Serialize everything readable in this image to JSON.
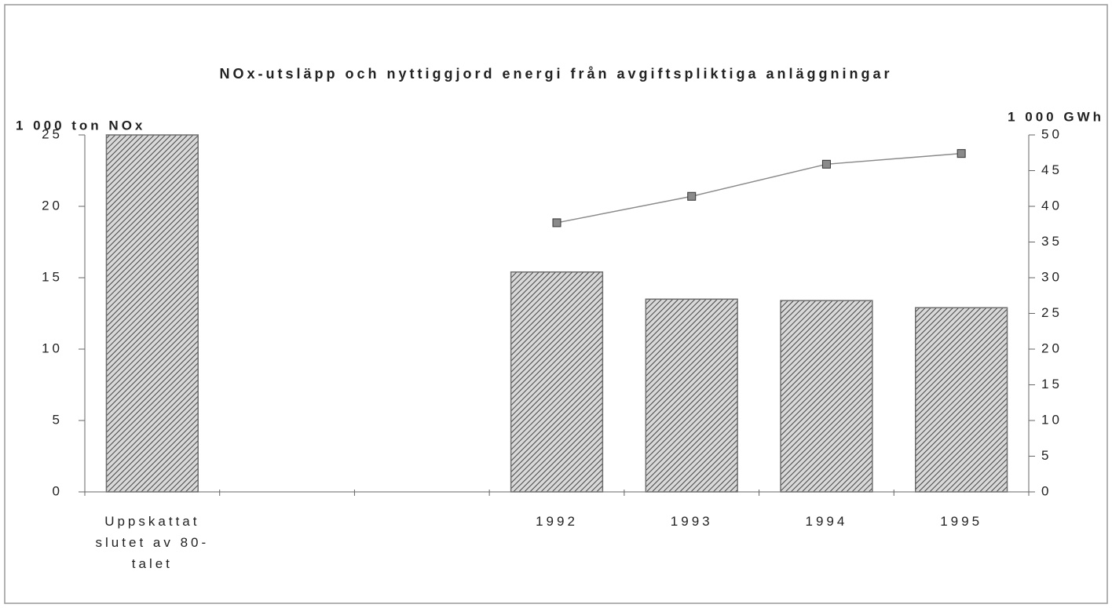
{
  "chart_data": {
    "type": "bar",
    "title": "NOx-utsläpp och nyttiggjord energi från avgiftspliktiga anläggningar",
    "y_label": "1 000 ton NOx",
    "y2_label": "1 000 GWh",
    "categories": [
      "Uppskattat slutet av 80-talet",
      null,
      null,
      "1992",
      "1993",
      "1994",
      "1995"
    ],
    "series": [
      {
        "type": "bar",
        "color": "#6e6e6e",
        "values": [
          25,
          null,
          null,
          15.4,
          13.5,
          13.4,
          12.9
        ]
      },
      {
        "type": "line",
        "axis": "y2",
        "color": "#8a8a8a",
        "values": [
          null,
          null,
          null,
          37.7,
          41.4,
          45.9,
          47.4
        ]
      }
    ],
    "ylim": [
      0,
      25
    ],
    "yticks": [
      0,
      5,
      10,
      15,
      20,
      25
    ],
    "y2lim": [
      0,
      50
    ],
    "y2ticks": [
      0,
      5,
      10,
      15,
      20,
      25,
      30,
      35,
      40,
      45,
      50
    ],
    "grid": false
  }
}
